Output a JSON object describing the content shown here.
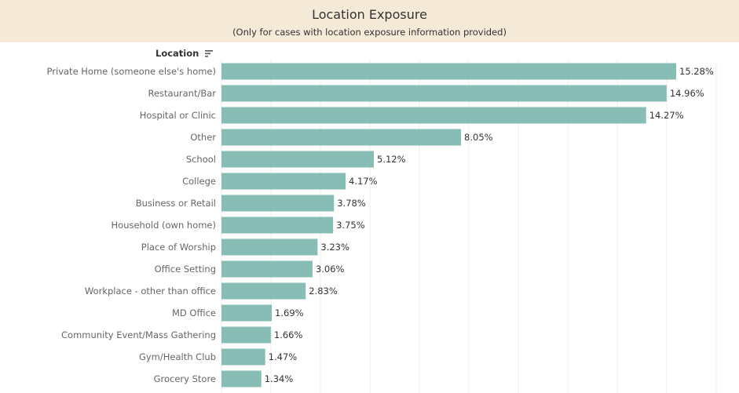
{
  "header": {
    "title": "Location Exposure",
    "subtitle": "(Only for cases with location exposure information provided)"
  },
  "column_header": {
    "label": "Location",
    "sort_icon": "sort-descending-icon"
  },
  "chart_data": {
    "type": "bar",
    "orientation": "horizontal",
    "title": "Location Exposure",
    "subtitle": "(Only for cases with location exposure information provided)",
    "ylabel": "Location",
    "categories": [
      "Private Home (someone else's home)",
      "Restaurant/Bar",
      "Hospital or Clinic",
      "Other",
      "School",
      "College",
      "Business or Retail",
      "Household (own home)",
      "Place of Worship",
      "Office Setting",
      "Workplace - other than office",
      "MD Office",
      "Community Event/Mass Gathering",
      "Gym/Health Club",
      "Grocery Store"
    ],
    "values": [
      15.28,
      14.96,
      14.27,
      8.05,
      5.12,
      4.17,
      3.78,
      3.75,
      3.23,
      3.06,
      2.83,
      1.69,
      1.66,
      1.47,
      1.34
    ],
    "labels": [
      "15.28%",
      "14.96%",
      "14.27%",
      "8.05%",
      "5.12%",
      "4.17%",
      "3.78%",
      "3.75%",
      "3.23%",
      "3.06%",
      "2.83%",
      "1.69%",
      "1.66%",
      "1.47%",
      "1.34%"
    ],
    "xlim": [
      0,
      16.5
    ],
    "grid": true,
    "bar_color": "#88bdb5"
  }
}
